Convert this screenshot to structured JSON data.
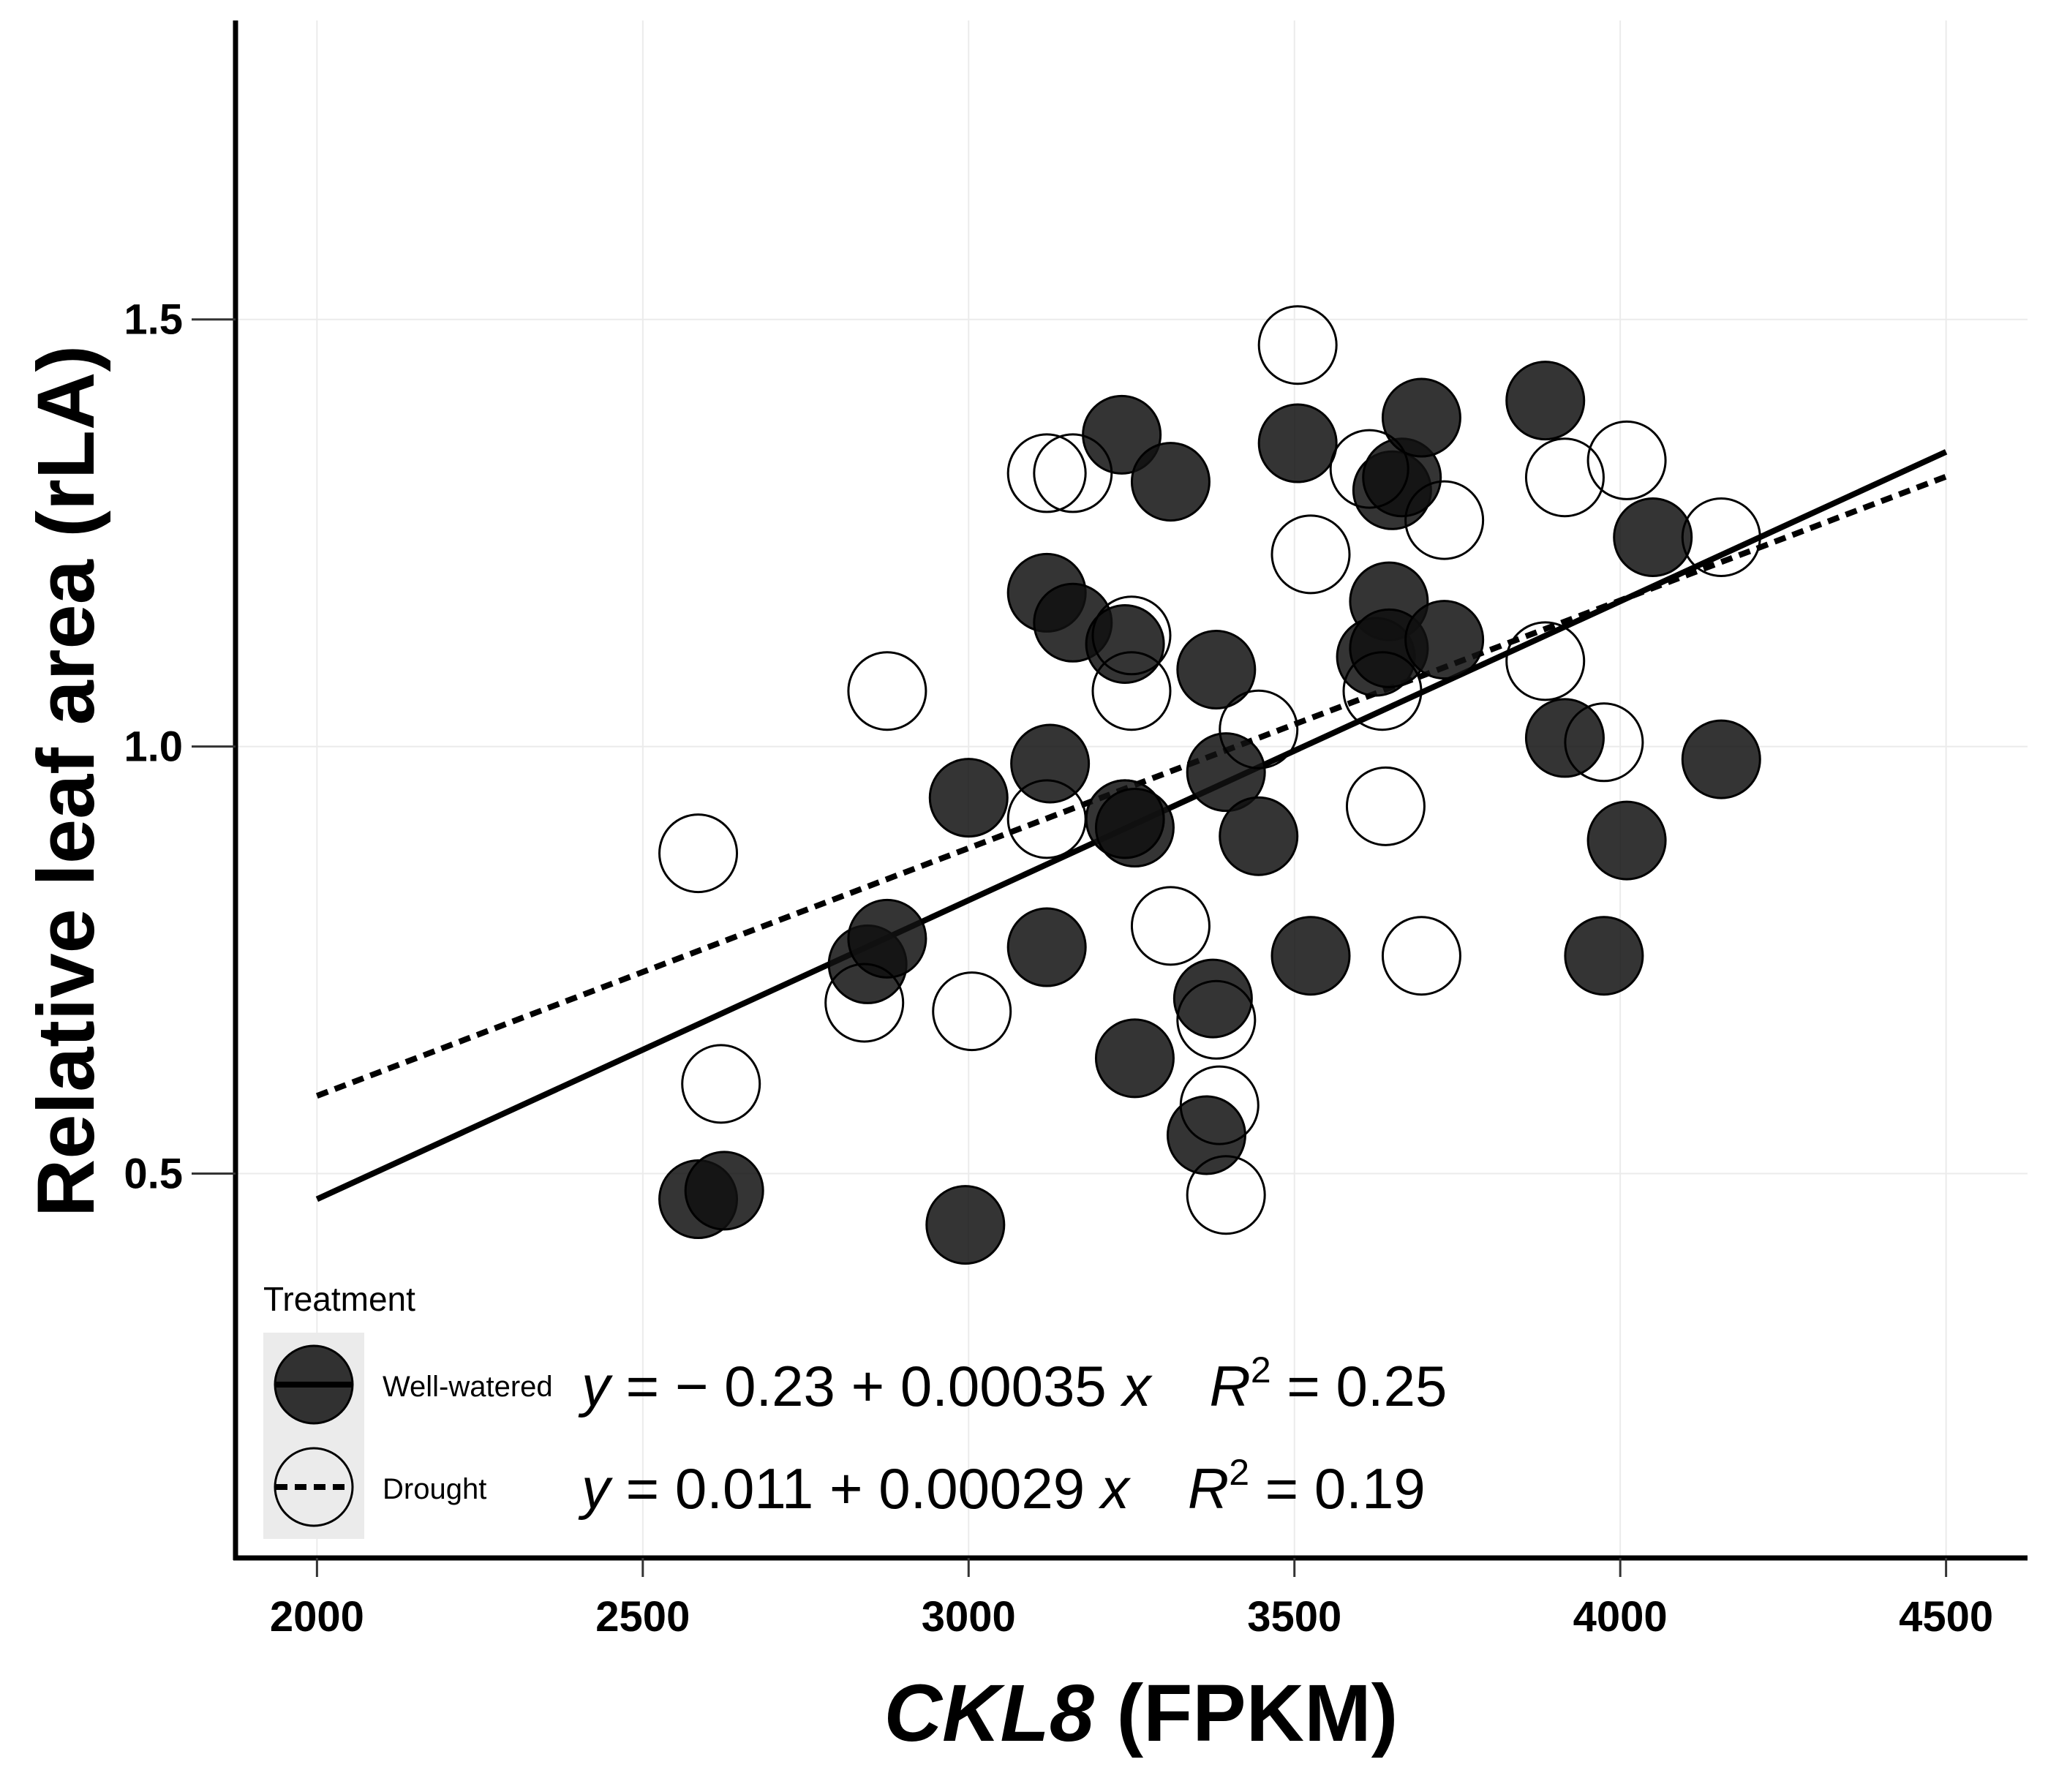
{
  "chart_data": {
    "type": "scatter",
    "xlabel_italic": "CKL8",
    "xlabel_rest": " (FPKM)",
    "ylabel": "Relative leaf area (rLA)",
    "xlim": [
      1875,
      4625
    ],
    "ylim": [
      0.05,
      1.85
    ],
    "xticks": [
      2000,
      2500,
      3000,
      3500,
      4000,
      4500
    ],
    "yticks": [
      0.5,
      1.0,
      1.5
    ],
    "ytick_labels": [
      "0.5",
      "1.0",
      "1.5"
    ],
    "grid": true,
    "legend": {
      "title": "Treatment",
      "position": "bottom-left"
    },
    "series": [
      {
        "name": "Well-watered",
        "marker": "filled",
        "color": "#111111",
        "line_style": "solid",
        "fit": {
          "intercept": -0.23,
          "slope": 0.00035,
          "x_range": [
            2000,
            4500
          ]
        },
        "equation": {
          "lhs": "y = ",
          "intercept": "− 0.23",
          "slope_text": "0.00035",
          "x": "x",
          "r2_value": "0.25"
        },
        "points": [
          [
            2585,
            0.47
          ],
          [
            2625,
            0.48
          ],
          [
            2995,
            0.44
          ],
          [
            2845,
            0.745
          ],
          [
            2875,
            0.775
          ],
          [
            3000,
            0.94
          ],
          [
            3125,
            0.98
          ],
          [
            3120,
            0.765
          ],
          [
            3255,
            0.635
          ],
          [
            3240,
            0.915
          ],
          [
            3255,
            0.905
          ],
          [
            3235,
            1.365
          ],
          [
            3310,
            1.31
          ],
          [
            3120,
            1.18
          ],
          [
            3160,
            1.145
          ],
          [
            3240,
            1.12
          ],
          [
            3380,
            1.09
          ],
          [
            3395,
            0.97
          ],
          [
            3445,
            0.895
          ],
          [
            3375,
            0.705
          ],
          [
            3365,
            0.545
          ],
          [
            3525,
            0.755
          ],
          [
            3505,
            1.355
          ],
          [
            3645,
            1.17
          ],
          [
            3625,
            1.105
          ],
          [
            3645,
            1.115
          ],
          [
            3650,
            1.3
          ],
          [
            3665,
            1.315
          ],
          [
            3695,
            1.385
          ],
          [
            3730,
            1.125
          ],
          [
            3885,
            1.405
          ],
          [
            3915,
            1.01
          ],
          [
            4050,
            1.245
          ],
          [
            4010,
            0.89
          ],
          [
            3975,
            0.755
          ],
          [
            4155,
            0.985
          ]
        ]
      },
      {
        "name": "Drought",
        "marker": "open",
        "color": "#ffffff",
        "line_style": "dashed",
        "fit": {
          "intercept": 0.011,
          "slope": 0.00029,
          "x_range": [
            2000,
            4500
          ]
        },
        "equation": {
          "lhs": "y = ",
          "intercept": "0.011",
          "slope_text": "0.00029",
          "x": "x",
          "r2_value": "0.19"
        },
        "points": [
          [
            2585,
            0.875
          ],
          [
            2620,
            0.605
          ],
          [
            2840,
            0.7
          ],
          [
            2875,
            1.065
          ],
          [
            3005,
            0.69
          ],
          [
            3120,
            1.32
          ],
          [
            3160,
            1.32
          ],
          [
            3120,
            0.915
          ],
          [
            3240,
            0.915
          ],
          [
            3250,
            1.13
          ],
          [
            3250,
            1.065
          ],
          [
            3310,
            0.79
          ],
          [
            3380,
            0.68
          ],
          [
            3385,
            0.58
          ],
          [
            3395,
            0.475
          ],
          [
            3445,
            1.02
          ],
          [
            3505,
            1.47
          ],
          [
            3525,
            1.225
          ],
          [
            3615,
            1.325
          ],
          [
            3635,
            1.065
          ],
          [
            3640,
            0.93
          ],
          [
            3695,
            0.755
          ],
          [
            3730,
            1.265
          ],
          [
            3885,
            1.1
          ],
          [
            3915,
            1.315
          ],
          [
            3975,
            1.005
          ],
          [
            4010,
            1.335
          ],
          [
            4155,
            1.245
          ]
        ]
      }
    ]
  }
}
